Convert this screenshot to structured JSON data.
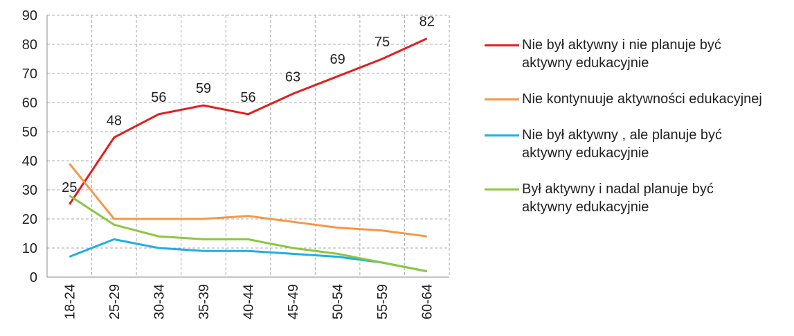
{
  "chart_data": {
    "type": "line",
    "categories": [
      "18-24",
      "25-29",
      "30-34",
      "35-39",
      "40-44",
      "45-49",
      "50-54",
      "55-59",
      "60-64"
    ],
    "series": [
      {
        "name": "Nie był aktywny i nie planuje być aktywny edukacyjnie",
        "color": "#e41e1e",
        "values": [
          25,
          48,
          56,
          59,
          56,
          63,
          69,
          75,
          82
        ],
        "data_labels": true
      },
      {
        "name": "Nie kontynuuje aktywności edukacyjnej",
        "color": "#f79646",
        "values": [
          39,
          20,
          20,
          20,
          21,
          19,
          17,
          16,
          14
        ]
      },
      {
        "name": "Nie był aktywny , ale planuje być aktywny edukacyjnie",
        "color": "#1eaee6",
        "values": [
          7,
          13,
          10,
          9,
          9,
          8,
          7,
          5,
          2
        ]
      },
      {
        "name": "Był aktywny i nadal planuje być aktywny edukacyjnie",
        "color": "#8dc63f",
        "values": [
          28,
          18,
          14,
          13,
          13,
          10,
          8,
          5,
          2
        ]
      }
    ],
    "ylim": [
      0,
      90
    ],
    "yticks": [
      0,
      10,
      20,
      30,
      40,
      50,
      60,
      70,
      80,
      90
    ],
    "grid": true,
    "legend": "right"
  }
}
